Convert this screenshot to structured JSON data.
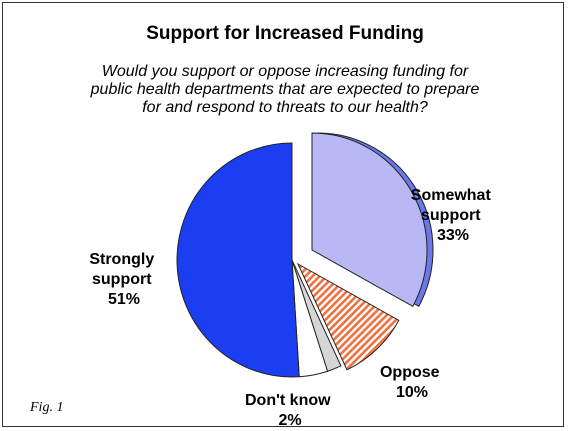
{
  "chart_data": {
    "type": "pie",
    "title": "Support for Increased Funding",
    "subtitle_lines": [
      "Would you support or oppose increasing funding for",
      "public health departments that are expected to prepare",
      "for and respond to threats to our health?"
    ],
    "slices": [
      {
        "label_lines": [
          "Somewhat",
          "support"
        ],
        "value": 33,
        "value_label": "33%",
        "color": "#b8b8f4"
      },
      {
        "label_lines": [
          "Oppose"
        ],
        "value": 10,
        "value_label": "10%",
        "color": "#f07040"
      },
      {
        "label_lines": [
          "Don't know"
        ],
        "value": 2,
        "value_label": "2%",
        "color": "#d6d6d6"
      },
      {
        "label_lines": [],
        "value": 4,
        "value_label": "",
        "color": "#ffffff"
      },
      {
        "label_lines": [
          "Strongly",
          "support"
        ],
        "value": 51,
        "value_label": "51%",
        "color": "#1a3ef0"
      }
    ]
  },
  "figure_label": "Fig. 1"
}
